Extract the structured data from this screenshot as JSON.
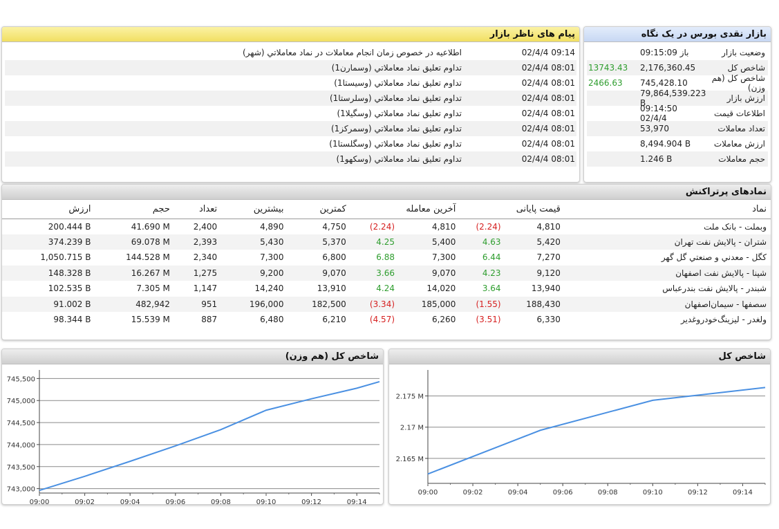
{
  "messages": {
    "title": "پیام های ناظر بازار",
    "items": [
      {
        "date": "02/4/4",
        "time": "09:14",
        "text": "اطلاعیه در خصوص زمان انجام معاملات در نماد معاملاتي (شهر)"
      },
      {
        "date": "02/4/4",
        "time": "08:01",
        "text": "تداوم تعلیق نماد معاملاتي (وسمارن1)"
      },
      {
        "date": "02/4/4",
        "time": "08:01",
        "text": "تداوم تعلیق نماد معاملاتي (وسیستا1)"
      },
      {
        "date": "02/4/4",
        "time": "08:01",
        "text": "تداوم تعلیق نماد معاملاتي (وسلرستا1)"
      },
      {
        "date": "02/4/4",
        "time": "08:01",
        "text": "تداوم تعلیق نماد معاملاتي (وسگیلا1)"
      },
      {
        "date": "02/4/4",
        "time": "08:01",
        "text": "تداوم تعلیق نماد معاملاتي (وسمرکز1)"
      },
      {
        "date": "02/4/4",
        "time": "08:01",
        "text": "تداوم تعلیق نماد معاملاتي (وسگلستا1)"
      },
      {
        "date": "02/4/4",
        "time": "08:01",
        "text": "تداوم تعلیق نماد معاملاتي (وسکهو1)"
      }
    ]
  },
  "glance": {
    "title": "بازار نقدی بورس در یک نگاه",
    "rows": [
      {
        "label": "وضعیت بازار",
        "value": "باز 09:15:09",
        "extra": ""
      },
      {
        "label": "شاخص کل",
        "value": "2,176,360.45",
        "extra": "13743.43"
      },
      {
        "label": "شاخص کل (هم وزن)",
        "value": "745,428.10",
        "extra": "2466.63"
      },
      {
        "label": "ارزش بازار",
        "value": "79,864,539.223 B",
        "extra": ""
      },
      {
        "label": "اطلاعات قیمت",
        "value": "09:14:50 02/4/4",
        "extra": ""
      },
      {
        "label": "تعداد معاملات",
        "value": "53,970",
        "extra": ""
      },
      {
        "label": "ارزش معاملات",
        "value": "8,494.904 B",
        "extra": ""
      },
      {
        "label": "حجم معاملات",
        "value": "1.246 B",
        "extra": ""
      }
    ]
  },
  "top_traded": {
    "title": "نمادهای پرتراکنش",
    "headers": {
      "symbol": "نماد",
      "final_price": "قیمت پایانی",
      "last_trade": "آخرین معامله",
      "min": "کمترین",
      "max": "بیشترین",
      "count": "تعداد",
      "volume": "حجم",
      "value": "ارزش"
    },
    "rows": [
      {
        "symbol": "وبملت - بانک ملت",
        "final": "4,810",
        "final_chg": "(2.24)",
        "final_sign": "neg",
        "last": "4,810",
        "last_chg": "(2.24)",
        "last_sign": "neg",
        "min": "4,750",
        "max": "4,890",
        "count": "2,400",
        "volume": "41.690 M",
        "value": "200.444 B"
      },
      {
        "symbol": "شتران - پالایش نفت تهران",
        "final": "5,420",
        "final_chg": "4.63",
        "final_sign": "pos",
        "last": "5,400",
        "last_chg": "4.25",
        "last_sign": "pos",
        "min": "5,370",
        "max": "5,430",
        "count": "2,393",
        "volume": "69.078 M",
        "value": "374.239 B"
      },
      {
        "symbol": "کگل - معدني و صنعتي گل گهر",
        "final": "7,270",
        "final_chg": "6.44",
        "final_sign": "pos",
        "last": "7,300",
        "last_chg": "6.88",
        "last_sign": "pos",
        "min": "6,800",
        "max": "7,300",
        "count": "2,340",
        "volume": "144.528 M",
        "value": "1,050.715 B"
      },
      {
        "symbol": "شپنا - پالایش نفت اصفهان",
        "final": "9,120",
        "final_chg": "4.23",
        "final_sign": "pos",
        "last": "9,070",
        "last_chg": "3.66",
        "last_sign": "pos",
        "min": "9,070",
        "max": "9,200",
        "count": "1,275",
        "volume": "16.267 M",
        "value": "148.328 B"
      },
      {
        "symbol": "شبندر - پالایش نفت بندرعباس",
        "final": "13,940",
        "final_chg": "3.64",
        "final_sign": "pos",
        "last": "14,020",
        "last_chg": "4.24",
        "last_sign": "pos",
        "min": "13,910",
        "max": "14,240",
        "count": "1,147",
        "volume": "7.305 M",
        "value": "102.535 B"
      },
      {
        "symbol": "سصفها - سیمان‌اصفهان",
        "final": "188,430",
        "final_chg": "(1.55)",
        "final_sign": "neg",
        "last": "185,000",
        "last_chg": "(3.34)",
        "last_sign": "neg",
        "min": "182,500",
        "max": "196,000",
        "count": "951",
        "volume": "482,942",
        "value": "91.002 B"
      },
      {
        "symbol": "ولغدر - لیزینگ‌خودروغدیر",
        "final": "6,330",
        "final_chg": "(3.51)",
        "final_sign": "neg",
        "last": "6,260",
        "last_chg": "(4.57)",
        "last_sign": "neg",
        "min": "6,210",
        "max": "6,480",
        "count": "887",
        "volume": "15.539 M",
        "value": "98.344 B"
      }
    ]
  },
  "colors": {
    "line": "#4a90e2",
    "grid": "#8a8a8a",
    "positive": "#2e9d2e",
    "negative": "#d62020"
  },
  "chart_data": [
    {
      "type": "line",
      "title": "شاخص کل (هم وزن)",
      "x": [
        "09:00",
        "09:02",
        "09:04",
        "09:06",
        "09:08",
        "09:10",
        "09:12",
        "09:14",
        "09:15"
      ],
      "xticks": [
        "09:00",
        "09:02",
        "09:04",
        "09:06",
        "09:08",
        "09:10",
        "09:12",
        "09:14"
      ],
      "series": [
        {
          "values": [
            742960,
            743280,
            743620,
            743970,
            744340,
            744780,
            745040,
            745280,
            745428
          ]
        }
      ],
      "yticks": [
        743000,
        743500,
        744000,
        744500,
        745000,
        745500
      ],
      "ytick_labels": [
        "743,000",
        "743,500",
        "744,000",
        "744,500",
        "745,000",
        "745,500"
      ],
      "ylim": [
        742900,
        745600
      ],
      "grid": true
    },
    {
      "type": "line",
      "title": "شاخص کل",
      "x": [
        "09:00",
        "09:05",
        "09:10",
        "09:15"
      ],
      "xticks": [
        "09:00",
        "09:02",
        "09:04",
        "09:06",
        "09:08",
        "09:10",
        "09:12",
        "09:14"
      ],
      "series": [
        {
          "values": [
            2162500,
            2169500,
            2174300,
            2176360
          ]
        }
      ],
      "yticks": [
        2165000,
        2170000,
        2175000
      ],
      "ytick_labels": [
        "2.165 M",
        "2.17 M",
        "2.175 M"
      ],
      "ylim": [
        2161000,
        2178500
      ],
      "grid": true
    }
  ]
}
